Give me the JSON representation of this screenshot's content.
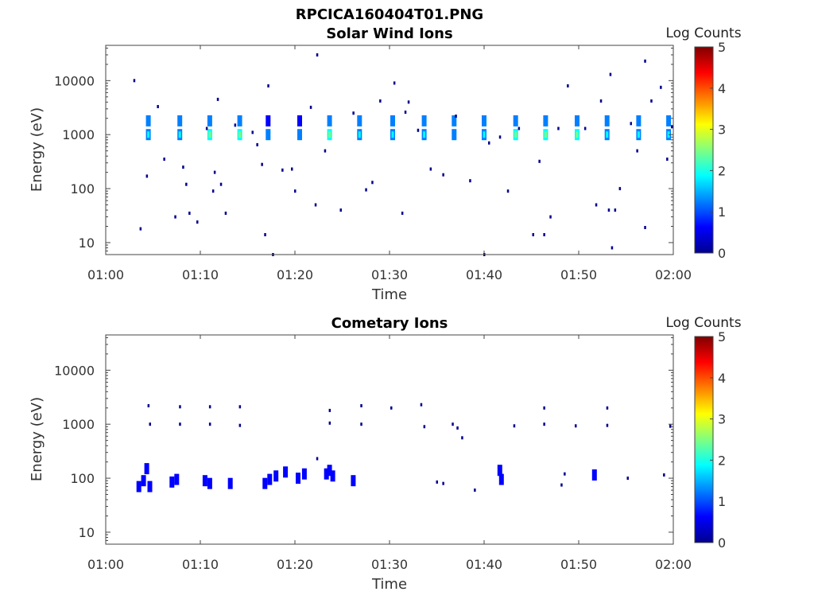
{
  "figure_title": "RPCICA160404T01.PNG",
  "colormap": [
    "#00008f",
    "#0000ff",
    "#0080ff",
    "#00ffff",
    "#80ff80",
    "#ffff00",
    "#ff8000",
    "#ff0000",
    "#800000"
  ],
  "chart_data": [
    {
      "type": "heatmap",
      "title": "Solar Wind Ions",
      "xlabel": "Time",
      "ylabel": "Energy (eV)",
      "y_scale": "log",
      "xlim": [
        "01:00",
        "02:00"
      ],
      "ylim": [
        6,
        45000
      ],
      "x_ticks": [
        "01:00",
        "01:10",
        "01:20",
        "01:30",
        "01:40",
        "01:50",
        "02:00"
      ],
      "y_ticks": [
        {
          "value": 10,
          "label": "10"
        },
        {
          "value": 100,
          "label": "100"
        },
        {
          "value": 1000,
          "label": "1000"
        },
        {
          "value": 10000,
          "label": "10000"
        }
      ],
      "colorbar": {
        "label": "Log Counts",
        "min": 0,
        "max": 5,
        "ticks": [
          "0",
          "1",
          "2",
          "3",
          "4",
          "5"
        ]
      },
      "grid": false,
      "cells": [
        {
          "t": "01:04:30",
          "e": 1000,
          "c": 1.5
        },
        {
          "t": "01:04:30",
          "e": 1800,
          "c": 1.0
        },
        {
          "t": "01:07:50",
          "e": 1000,
          "c": 1.5
        },
        {
          "t": "01:07:50",
          "e": 1800,
          "c": 1.0
        },
        {
          "t": "01:11:00",
          "e": 1000,
          "c": 1.6
        },
        {
          "t": "01:11:00",
          "e": 1800,
          "c": 1.0
        },
        {
          "t": "01:14:10",
          "e": 1000,
          "c": 1.6
        },
        {
          "t": "01:14:10",
          "e": 1800,
          "c": 1.2
        },
        {
          "t": "01:17:10",
          "e": 1000,
          "c": 1.0
        },
        {
          "t": "01:17:10",
          "e": 1800,
          "c": 0.8
        },
        {
          "t": "01:20:30",
          "e": 1000,
          "c": 1.0
        },
        {
          "t": "01:20:30",
          "e": 1800,
          "c": 0.8
        },
        {
          "t": "01:23:40",
          "e": 1000,
          "c": 1.6
        },
        {
          "t": "01:23:40",
          "e": 1800,
          "c": 1.2
        },
        {
          "t": "01:26:50",
          "e": 1000,
          "c": 1.5
        },
        {
          "t": "01:26:50",
          "e": 1800,
          "c": 1.0
        },
        {
          "t": "01:30:20",
          "e": 1000,
          "c": 1.5
        },
        {
          "t": "01:30:20",
          "e": 1800,
          "c": 1.0
        },
        {
          "t": "01:33:40",
          "e": 1000,
          "c": 1.5
        },
        {
          "t": "01:33:40",
          "e": 1800,
          "c": 1.0
        },
        {
          "t": "01:36:50",
          "e": 1000,
          "c": 1.3
        },
        {
          "t": "01:36:50",
          "e": 1800,
          "c": 1.0
        },
        {
          "t": "01:40:00",
          "e": 1000,
          "c": 1.5
        },
        {
          "t": "01:40:00",
          "e": 1800,
          "c": 1.0
        },
        {
          "t": "01:43:20",
          "e": 1000,
          "c": 1.6
        },
        {
          "t": "01:43:20",
          "e": 1800,
          "c": 1.0
        },
        {
          "t": "01:46:30",
          "e": 1000,
          "c": 1.6
        },
        {
          "t": "01:46:30",
          "e": 1800,
          "c": 1.2
        },
        {
          "t": "01:49:50",
          "e": 1000,
          "c": 1.6
        },
        {
          "t": "01:49:50",
          "e": 1800,
          "c": 1.0
        },
        {
          "t": "01:53:00",
          "e": 1000,
          "c": 1.5
        },
        {
          "t": "01:53:00",
          "e": 1800,
          "c": 1.0
        },
        {
          "t": "01:56:20",
          "e": 1000,
          "c": 1.5
        },
        {
          "t": "01:56:20",
          "e": 1800,
          "c": 1.0
        },
        {
          "t": "01:59:30",
          "e": 1000,
          "c": 1.5
        },
        {
          "t": "01:59:30",
          "e": 1800,
          "c": 1.0
        }
      ],
      "speckles": [
        {
          "t": "01:03:00",
          "e": 10000
        },
        {
          "t": "01:03:40",
          "e": 18
        },
        {
          "t": "01:04:20",
          "e": 170
        },
        {
          "t": "01:05:30",
          "e": 3300
        },
        {
          "t": "01:06:10",
          "e": 350
        },
        {
          "t": "01:07:20",
          "e": 30
        },
        {
          "t": "01:08:10",
          "e": 250
        },
        {
          "t": "01:08:30",
          "e": 120
        },
        {
          "t": "01:08:50",
          "e": 35
        },
        {
          "t": "01:09:40",
          "e": 24
        },
        {
          "t": "01:10:40",
          "e": 1300
        },
        {
          "t": "01:11:20",
          "e": 90
        },
        {
          "t": "01:11:30",
          "e": 200
        },
        {
          "t": "01:11:50",
          "e": 4500
        },
        {
          "t": "01:12:10",
          "e": 120
        },
        {
          "t": "01:12:40",
          "e": 35
        },
        {
          "t": "01:13:40",
          "e": 1500
        },
        {
          "t": "01:15:30",
          "e": 1100
        },
        {
          "t": "01:16:00",
          "e": 650
        },
        {
          "t": "01:16:30",
          "e": 280
        },
        {
          "t": "01:16:50",
          "e": 14
        },
        {
          "t": "01:17:10",
          "e": 8000
        },
        {
          "t": "01:17:40",
          "e": 6
        },
        {
          "t": "01:18:40",
          "e": 220
        },
        {
          "t": "01:19:40",
          "e": 230
        },
        {
          "t": "01:20:00",
          "e": 90
        },
        {
          "t": "01:21:40",
          "e": 3200
        },
        {
          "t": "01:22:10",
          "e": 50
        },
        {
          "t": "01:22:20",
          "e": 30000
        },
        {
          "t": "01:23:10",
          "e": 500
        },
        {
          "t": "01:24:50",
          "e": 40
        },
        {
          "t": "01:26:10",
          "e": 2500
        },
        {
          "t": "01:27:30",
          "e": 95
        },
        {
          "t": "01:28:10",
          "e": 130
        },
        {
          "t": "01:29:00",
          "e": 4200
        },
        {
          "t": "01:30:30",
          "e": 9000
        },
        {
          "t": "01:31:20",
          "e": 35
        },
        {
          "t": "01:31:40",
          "e": 2600
        },
        {
          "t": "01:32:00",
          "e": 4000
        },
        {
          "t": "01:33:00",
          "e": 1200
        },
        {
          "t": "01:34:20",
          "e": 230
        },
        {
          "t": "01:35:40",
          "e": 180
        },
        {
          "t": "01:37:00",
          "e": 2200
        },
        {
          "t": "01:38:30",
          "e": 140
        },
        {
          "t": "01:40:00",
          "e": 6
        },
        {
          "t": "01:40:30",
          "e": 700
        },
        {
          "t": "01:41:40",
          "e": 900
        },
        {
          "t": "01:42:30",
          "e": 90
        },
        {
          "t": "01:43:40",
          "e": 1300
        },
        {
          "t": "01:45:10",
          "e": 14
        },
        {
          "t": "01:45:50",
          "e": 320
        },
        {
          "t": "01:46:20",
          "e": 14
        },
        {
          "t": "01:47:00",
          "e": 30
        },
        {
          "t": "01:47:50",
          "e": 1300
        },
        {
          "t": "01:48:50",
          "e": 8000
        },
        {
          "t": "01:50:40",
          "e": 1300
        },
        {
          "t": "01:51:50",
          "e": 50
        },
        {
          "t": "01:52:20",
          "e": 4200
        },
        {
          "t": "01:53:10",
          "e": 40
        },
        {
          "t": "01:53:20",
          "e": 13000
        },
        {
          "t": "01:53:30",
          "e": 8
        },
        {
          "t": "01:53:50",
          "e": 40
        },
        {
          "t": "01:54:20",
          "e": 100
        },
        {
          "t": "01:55:30",
          "e": 1600
        },
        {
          "t": "01:56:10",
          "e": 500
        },
        {
          "t": "01:57:00",
          "e": 23000
        },
        {
          "t": "01:57:00",
          "e": 19
        },
        {
          "t": "01:57:40",
          "e": 4200
        },
        {
          "t": "01:58:40",
          "e": 7500
        },
        {
          "t": "01:59:20",
          "e": 350
        },
        {
          "t": "01:59:50",
          "e": 1400
        }
      ]
    },
    {
      "type": "heatmap",
      "title": "Cometary Ions",
      "xlabel": "Time",
      "ylabel": "Energy (eV)",
      "y_scale": "log",
      "xlim": [
        "01:00",
        "02:00"
      ],
      "ylim": [
        6,
        45000
      ],
      "x_ticks": [
        "01:00",
        "01:10",
        "01:20",
        "01:30",
        "01:40",
        "01:50",
        "02:00"
      ],
      "y_ticks": [
        {
          "value": 10,
          "label": "10"
        },
        {
          "value": 100,
          "label": "100"
        },
        {
          "value": 1000,
          "label": "1000"
        },
        {
          "value": 10000,
          "label": "10000"
        }
      ],
      "colorbar": {
        "label": "Log Counts",
        "min": 0,
        "max": 5,
        "ticks": [
          "0",
          "1",
          "2",
          "3",
          "4",
          "5"
        ]
      },
      "grid": false,
      "cells": [
        {
          "t": "01:03:30",
          "e": 70,
          "c": 0.7
        },
        {
          "t": "01:04:00",
          "e": 90,
          "c": 0.8
        },
        {
          "t": "01:04:20",
          "e": 150,
          "c": 0.6
        },
        {
          "t": "01:04:40",
          "e": 70,
          "c": 0.5
        },
        {
          "t": "01:07:00",
          "e": 85,
          "c": 0.6
        },
        {
          "t": "01:07:30",
          "e": 95,
          "c": 0.5
        },
        {
          "t": "01:10:30",
          "e": 90,
          "c": 0.7
        },
        {
          "t": "01:11:00",
          "e": 80,
          "c": 0.6
        },
        {
          "t": "01:13:10",
          "e": 80,
          "c": 0.5
        },
        {
          "t": "01:16:50",
          "e": 80,
          "c": 0.6
        },
        {
          "t": "01:17:20",
          "e": 95,
          "c": 0.6
        },
        {
          "t": "01:18:00",
          "e": 110,
          "c": 0.7
        },
        {
          "t": "01:19:00",
          "e": 130,
          "c": 0.8
        },
        {
          "t": "01:20:20",
          "e": 100,
          "c": 0.8
        },
        {
          "t": "01:21:00",
          "e": 120,
          "c": 0.6
        },
        {
          "t": "01:23:20",
          "e": 120,
          "c": 0.8
        },
        {
          "t": "01:23:40",
          "e": 140,
          "c": 0.9
        },
        {
          "t": "01:24:00",
          "e": 110,
          "c": 0.7
        },
        {
          "t": "01:26:10",
          "e": 90,
          "c": 0.5
        },
        {
          "t": "01:41:40",
          "e": 140,
          "c": 0.7
        },
        {
          "t": "01:41:50",
          "e": 95,
          "c": 0.6
        },
        {
          "t": "01:51:40",
          "e": 115,
          "c": 0.6
        }
      ],
      "speckles": [
        {
          "t": "01:04:30",
          "e": 2200
        },
        {
          "t": "01:04:40",
          "e": 1000
        },
        {
          "t": "01:07:50",
          "e": 2100
        },
        {
          "t": "01:07:50",
          "e": 1000
        },
        {
          "t": "01:11:00",
          "e": 2100
        },
        {
          "t": "01:11:00",
          "e": 1000
        },
        {
          "t": "01:14:10",
          "e": 2100
        },
        {
          "t": "01:14:10",
          "e": 950
        },
        {
          "t": "01:22:20",
          "e": 230
        },
        {
          "t": "01:23:40",
          "e": 1800
        },
        {
          "t": "01:23:40",
          "e": 1050
        },
        {
          "t": "01:27:00",
          "e": 2200
        },
        {
          "t": "01:27:00",
          "e": 1000
        },
        {
          "t": "01:30:10",
          "e": 2000
        },
        {
          "t": "01:33:20",
          "e": 2300
        },
        {
          "t": "01:33:40",
          "e": 900
        },
        {
          "t": "01:35:00",
          "e": 85
        },
        {
          "t": "01:35:40",
          "e": 80
        },
        {
          "t": "01:36:40",
          "e": 1000
        },
        {
          "t": "01:37:10",
          "e": 850
        },
        {
          "t": "01:37:40",
          "e": 560
        },
        {
          "t": "01:39:00",
          "e": 60
        },
        {
          "t": "01:43:10",
          "e": 930
        },
        {
          "t": "01:46:20",
          "e": 2000
        },
        {
          "t": "01:46:20",
          "e": 1000
        },
        {
          "t": "01:48:10",
          "e": 75
        },
        {
          "t": "01:48:30",
          "e": 120
        },
        {
          "t": "01:49:40",
          "e": 930
        },
        {
          "t": "01:53:00",
          "e": 2000
        },
        {
          "t": "01:53:00",
          "e": 950
        },
        {
          "t": "01:55:10",
          "e": 100
        },
        {
          "t": "01:59:00",
          "e": 115
        },
        {
          "t": "01:59:40",
          "e": 920
        }
      ]
    }
  ]
}
